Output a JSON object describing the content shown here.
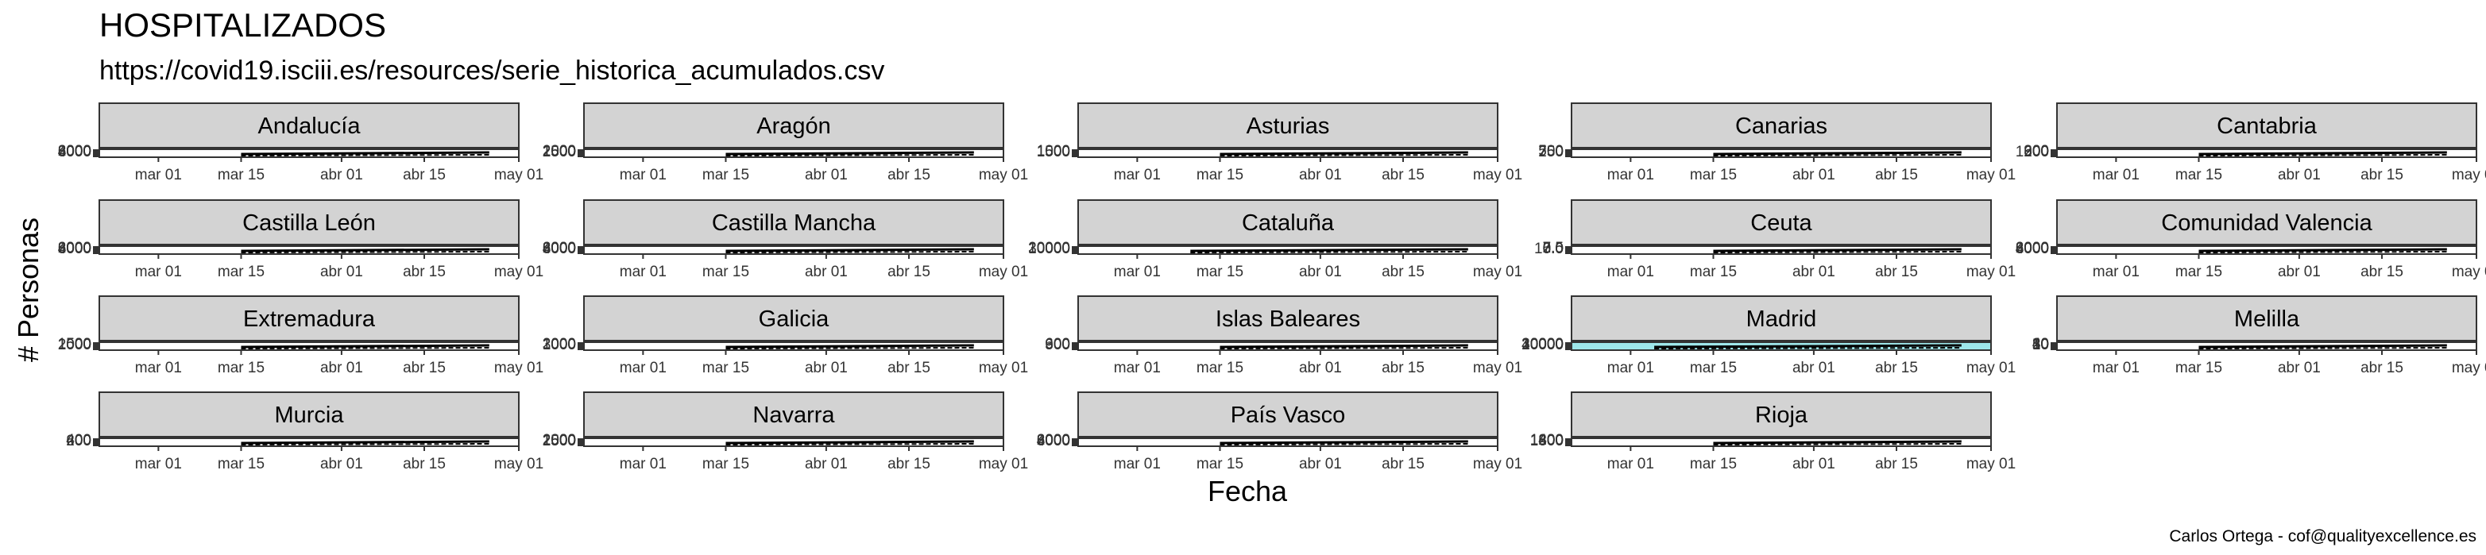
{
  "chart_data": {
    "type": "line",
    "title": "HOSPITALIZADOS",
    "subtitle": "https://covid19.isciii.es/resources/serie_historica_acumulados.csv",
    "xlabel": "Fecha",
    "ylabel": "# Personas",
    "caption": "Carlos Ortega - cof@qualityexcellence.es",
    "x_ticks": [
      "mar 01",
      "mar 15",
      "abr 01",
      "abr 15",
      "may 01"
    ],
    "x_range": [
      "2020-02-20",
      "2020-05-01"
    ],
    "grid": false,
    "legend": "none",
    "layout": {
      "cols": 5,
      "rows": 4
    },
    "colors": {
      "strip": "#d3d3d3",
      "line": "#000000",
      "highlight": "#9ee7ea"
    },
    "panels": [
      {
        "name": "Andalucía",
        "start": "2020-03-15",
        "yticks": [
          "8000",
          "6000",
          "4000",
          "2000"
        ]
      },
      {
        "name": "Aragón",
        "start": "2020-03-15",
        "yticks": [
          "2500",
          "2000",
          "1500",
          "1000",
          "500"
        ]
      },
      {
        "name": "Asturias",
        "start": "2020-03-15",
        "yticks": [
          "1500",
          "1000",
          "500"
        ]
      },
      {
        "name": "Canarias",
        "start": "2020-03-15",
        "yticks": [
          "750",
          "500",
          "250"
        ]
      },
      {
        "name": "Cantabria",
        "start": "2020-03-15",
        "yticks": [
          "1200",
          "900",
          "600",
          "300"
        ]
      },
      {
        "name": "Castilla León",
        "start": "2020-03-15",
        "yticks": [
          "8000",
          "6000",
          "4000",
          "2000"
        ]
      },
      {
        "name": "Castilla Mancha",
        "start": "2020-03-15",
        "yticks": [
          "8000",
          "6000",
          "4000",
          "2000"
        ]
      },
      {
        "name": "Cataluña",
        "start": "2020-03-10",
        "yticks": [
          "30000",
          "20000",
          "10000"
        ]
      },
      {
        "name": "Ceuta",
        "start": "2020-03-15",
        "yticks": [
          "10.0",
          "7.5",
          "5.0",
          "2.5",
          "0.0"
        ]
      },
      {
        "name": "Comunidad Valencia",
        "start": "2020-03-15",
        "yticks": [
          "8000",
          "6000",
          "4000",
          "2000"
        ]
      },
      {
        "name": "Extremadura",
        "start": "2020-03-15",
        "yticks": [
          "2000",
          "1500",
          "1000",
          "500"
        ]
      },
      {
        "name": "Galicia",
        "start": "2020-03-15",
        "yticks": [
          "3000",
          "2000",
          "1000"
        ]
      },
      {
        "name": "Islas Baleares",
        "start": "2020-03-15",
        "yticks": [
          "900",
          "600",
          "300"
        ]
      },
      {
        "name": "Madrid",
        "start": "2020-03-05",
        "yticks": [
          "40000",
          "30000",
          "20000",
          "10000"
        ],
        "highlight": true
      },
      {
        "name": "Melilla",
        "start": "2020-03-15",
        "yticks": [
          "50",
          "40",
          "30",
          "20",
          "10"
        ]
      },
      {
        "name": "Murcia",
        "start": "2020-03-15",
        "yticks": [
          "600",
          "400",
          "200"
        ]
      },
      {
        "name": "Navarra",
        "start": "2020-03-15",
        "yticks": [
          "2500",
          "2000",
          "1500",
          "1000",
          "500"
        ]
      },
      {
        "name": "País Vasco",
        "start": "2020-03-15",
        "yticks": [
          "8000",
          "6000",
          "4000",
          "2000"
        ]
      },
      {
        "name": "Rioja",
        "start": "2020-03-15",
        "yticks": [
          "1600",
          "1200",
          "800",
          "400"
        ]
      }
    ]
  }
}
